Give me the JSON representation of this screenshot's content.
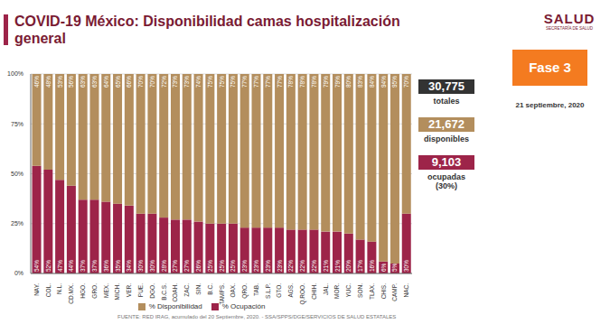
{
  "chart_data": {
    "type": "bar",
    "title": "COVID-19 México: Disponibilidad camas hospitalización general",
    "categories": [
      "NAY.",
      "COL.",
      "N.L.",
      "CD.MX.",
      "HGO.",
      "GRO.",
      "MEX.",
      "MICH.",
      "VER.",
      "PUE.",
      "DGO.",
      "B.C.S.",
      "COAH.",
      "ZAC.",
      "SIN.",
      "B.C.",
      "TAMPS.",
      "OAX.",
      "QRO.",
      "TAB.",
      "S.L.P.",
      "GTO.",
      "AGS.",
      "Q.ROO.",
      "CHIH.",
      "JAL.",
      "MOR.",
      "YUC.",
      "SON.",
      "TLAX.",
      "CHIS.",
      "CAMP.",
      "NAC."
    ],
    "series": [
      {
        "name": "% Ocupación",
        "color": "#9d2449",
        "values": [
          54,
          52,
          47,
          44,
          37,
          37,
          36,
          35,
          34,
          30,
          30,
          28,
          27,
          27,
          26,
          25,
          25,
          25,
          23,
          23,
          23,
          23,
          22,
          22,
          22,
          21,
          21,
          20,
          17,
          16,
          6,
          5,
          30
        ],
        "value_labels": [
          "54%",
          "52%",
          "47%",
          "44%",
          "37%",
          "37%",
          "36%",
          "35%",
          "34%",
          "30%",
          "30%",
          "28%",
          "27%",
          "27%",
          "26%",
          "25%",
          "25%",
          "25%",
          "23%",
          "23%",
          "23%",
          "23%",
          "22%",
          "22%",
          "22%",
          "21%",
          "21%",
          "20%",
          "17%",
          "16%",
          "6%",
          "5%",
          "30%"
        ]
      },
      {
        "name": "% Disponibilidad",
        "color": "#b38e5d",
        "values": [
          46,
          48,
          53,
          56,
          63,
          63,
          64,
          65,
          66,
          70,
          70,
          72,
          73,
          73,
          74,
          75,
          75,
          75,
          77,
          77,
          77,
          77,
          78,
          78,
          78,
          79,
          79,
          80,
          83,
          84,
          94,
          95,
          70
        ],
        "value_labels": [
          "46%",
          "48%",
          "53%",
          "56%",
          "63%",
          "63%",
          "64%",
          "65%",
          "66%",
          "70%",
          "70%",
          "72%",
          "73%",
          "73%",
          "74%",
          "75%",
          "75%",
          "75%",
          "77%",
          "77%",
          "77%",
          "77%",
          "78%",
          "78%",
          "78%",
          "79%",
          "79%",
          "80%",
          "83%",
          "84%",
          "94%",
          "95%",
          "70%"
        ]
      }
    ],
    "ylim": [
      0,
      100
    ],
    "yticks": [
      {
        "value": 0,
        "label": "0%"
      },
      {
        "value": 25,
        "label": "25%"
      },
      {
        "value": 50,
        "label": "50%"
      },
      {
        "value": 75,
        "label": "75%"
      },
      {
        "value": 100,
        "label": "100%"
      }
    ],
    "stacked": true,
    "data_labels": true,
    "grid": true,
    "legend": "bottom",
    "annotations": {
      "logo": "SALUD",
      "logo_sub": "SECRETARÍA DE SALUD",
      "phase": "Fase 3",
      "date": "21 septiembre, 2020",
      "total": "30,775",
      "total_label": "totales",
      "available": "21,672",
      "available_label": "disponibles",
      "occupied": "9,103",
      "occupied_label": "ocupadas (30%)",
      "source": "FUENTE: RED IRAG, acumulado del 20 Septiembre, 2020. - SSA/SPPS/DGE/SERVICIOS DE SALUD ESTATALES"
    }
  }
}
